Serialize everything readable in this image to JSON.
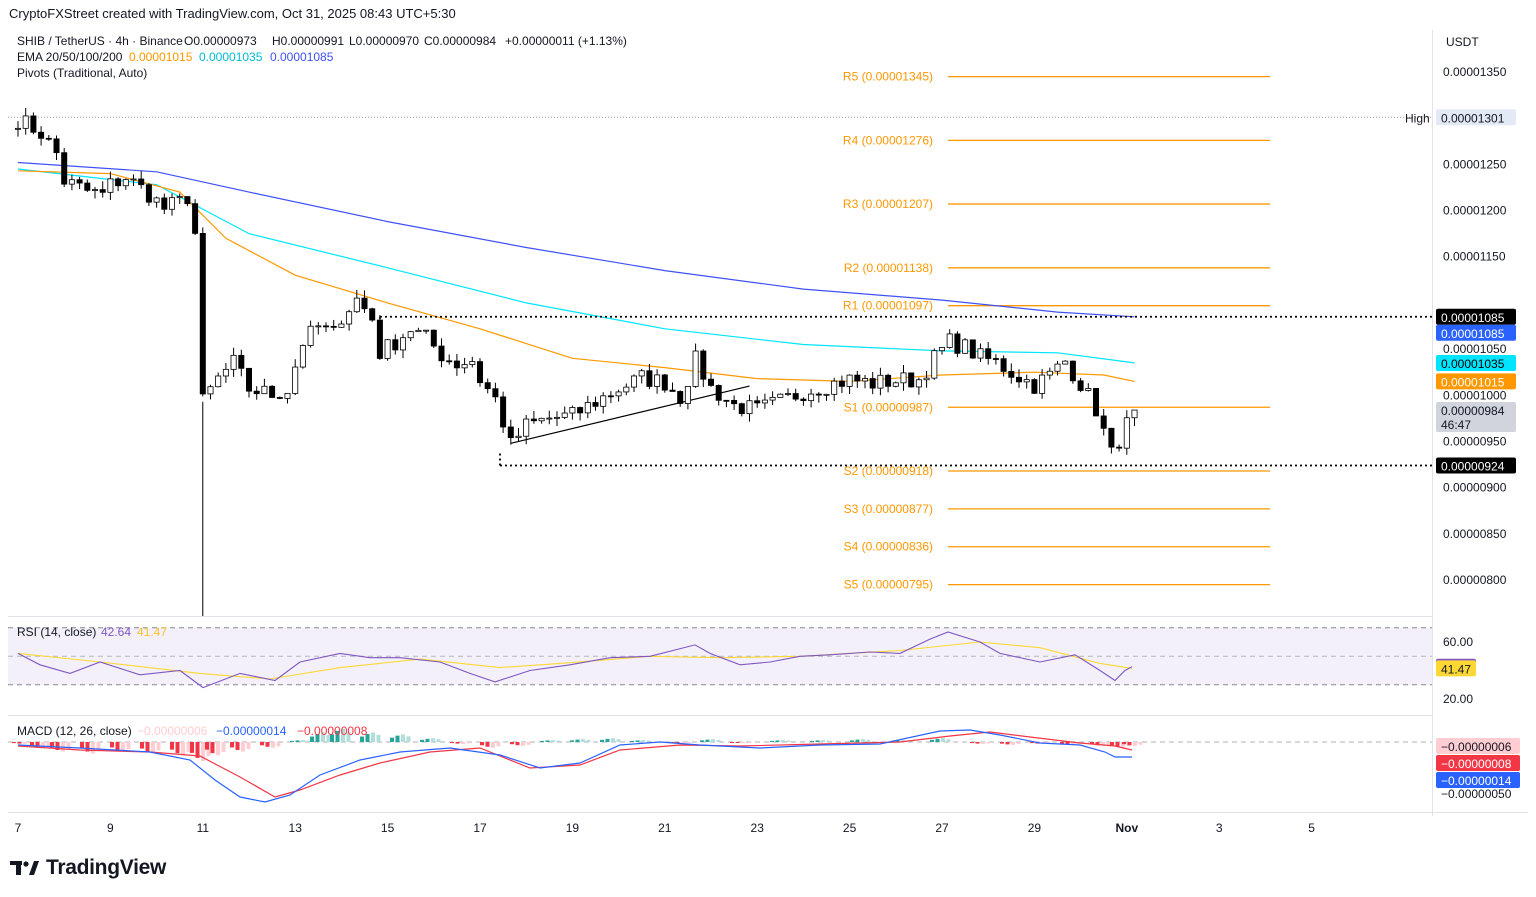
{
  "attribution": "CryptoFXStreet created with TradingView.com, Oct 31, 2025 08:43 UTC+5:30",
  "brand": "TradingView",
  "legend": {
    "symbol": "SHIB / TetherUS · 4h · Binance",
    "ohlc": {
      "o": "O0.00000973",
      "h": "H0.00000991",
      "l": "L0.00000970",
      "c": "C0.00000984",
      "chg": "+0.00000011 (+1.13%)"
    },
    "ema_label": "EMA 20/50/100/200",
    "ema_values": [
      "0.00001015",
      "0.00001035",
      "0.00001085"
    ],
    "pivots_label": "Pivots (Traditional, Auto)"
  },
  "currency": "USDT",
  "colors": {
    "up": "#ffffff",
    "down": "#000000",
    "wick": "#000000",
    "ema50": "#ff9800",
    "ema100": "#00e5ff",
    "ema200": "#3f51f5",
    "ema20": "#ffb26b",
    "pivot": "#ff9800",
    "rsi": "#7e57c2",
    "rsi_ma": "#fdd835",
    "macd": "#2962ff",
    "signal": "#f23645",
    "hist_up_strong": "#26a69a",
    "hist_up_weak": "#b2dfdb",
    "hist_dn_strong": "#f23645",
    "hist_dn_weak": "#ffcdd2"
  },
  "chart_data": [
    {
      "type": "candlestick",
      "title": "SHIB / TetherUS · 4h · Binance",
      "x_ticks": [
        "7",
        "9",
        "11",
        "13",
        "15",
        "17",
        "19",
        "21",
        "23",
        "25",
        "27",
        "29",
        "Nov",
        "3",
        "5"
      ],
      "y_ticks": [
        "0.00001350",
        "0.00001250",
        "0.00001200",
        "0.00001150",
        "0.00001050",
        "0.00001000",
        "0.00000950",
        "0.00000900",
        "0.00000850",
        "0.00000800"
      ],
      "ylim": [
        7.6e-06,
        1.38e-05
      ],
      "price_series": [
        [
          "Oct 7 00:00",
          1.299e-05
        ],
        [
          "Oct 7 12:00",
          1.284e-05
        ],
        [
          "Oct 7 20:00",
          1.262e-05
        ],
        [
          "Oct 8 00:00",
          1.232e-05
        ],
        [
          "Oct 8 12:00",
          1.221e-05
        ],
        [
          "Oct 8 20:00",
          1.217e-05
        ],
        [
          "Oct 9 00:00",
          1.228e-05
        ],
        [
          "Oct 9 08:00",
          1.236e-05
        ],
        [
          "Oct 9 20:00",
          1.218e-05
        ],
        [
          "Oct 10 04:00",
          1.202e-05
        ],
        [
          "Oct 10 12:00",
          1.209e-05
        ],
        [
          "Oct 10 16:00",
          1.215e-05
        ],
        [
          "Oct 10 20:00",
          1.175e-05
        ],
        [
          "Oct 11 00:00",
          9.93e-06
        ],
        [
          "Oct 11 08:00",
          1.018e-05
        ],
        [
          "Oct 11 16:00",
          1.035e-05
        ],
        [
          "Oct 12 00:00",
          1.007e-05
        ],
        [
          "Oct 12 12:00",
          1.001e-05
        ],
        [
          "Oct 12 20:00",
          1.006e-05
        ],
        [
          "Oct 13 04:00",
          1.058e-05
        ],
        [
          "Oct 13 12:00",
          1.074e-05
        ],
        [
          "Oct 13 20:00",
          1.066e-05
        ],
        [
          "Oct 14 00:00",
          1.086e-05
        ],
        [
          "Oct 14 08:00",
          1.104e-05
        ],
        [
          "Oct 14 16:00",
          1.083e-05
        ],
        [
          "Oct 14 20:00",
          1.046e-05
        ],
        [
          "Oct 15 04:00",
          1.058e-05
        ],
        [
          "Oct 15 12:00",
          1.072e-05
        ],
        [
          "Oct 15 20:00",
          1.062e-05
        ],
        [
          "Oct 16 04:00",
          1.044e-05
        ],
        [
          "Oct 16 12:00",
          1.034e-05
        ],
        [
          "Oct 16 20:00",
          1.038e-05
        ],
        [
          "Oct 17 00:00",
          1.017e-05
        ],
        [
          "Oct 17 08:00",
          9.96e-06
        ],
        [
          "Oct 17 16:00",
          9.46e-06
        ],
        [
          "Oct 18 00:00",
          9.67e-06
        ],
        [
          "Oct 18 12:00",
          9.75e-06
        ],
        [
          "Oct 19 00:00",
          9.78e-06
        ],
        [
          "Oct 19 12:00",
          9.93e-06
        ],
        [
          "Oct 20 00:00",
          1.007e-05
        ],
        [
          "Oct 20 12:00",
          1.019e-05
        ],
        [
          "Oct 21 00:00",
          1.014e-05
        ],
        [
          "Oct 21 08:00",
          9.98e-06
        ],
        [
          "Oct 21 16:00",
          1.038e-05
        ],
        [
          "Oct 22 00:00",
          1.008e-05
        ],
        [
          "Oct 22 12:00",
          9.89e-06
        ],
        [
          "Oct 23 00:00",
          9.84e-06
        ],
        [
          "Oct 23 12:00",
          9.93e-06
        ],
        [
          "Oct 24 00:00",
          1.004e-05
        ],
        [
          "Oct 24 12:00",
          1.011e-05
        ],
        [
          "Oct 25 00:00",
          1.017e-05
        ],
        [
          "Oct 25 12:00",
          1.013e-05
        ],
        [
          "Oct 26 00:00",
          1.016e-05
        ],
        [
          "Oct 26 12:00",
          1.017e-05
        ],
        [
          "Oct 26 20:00",
          1.04e-05
        ],
        [
          "Oct 27 04:00",
          1.058e-05
        ],
        [
          "Oct 27 12:00",
          1.052e-05
        ],
        [
          "Oct 27 20:00",
          1.041e-05
        ],
        [
          "Oct 28 04:00",
          1.036e-05
        ],
        [
          "Oct 28 12:00",
          1.025e-05
        ],
        [
          "Oct 29 00:00",
          1.011e-05
        ],
        [
          "Oct 29 08:00",
          1.022e-05
        ],
        [
          "Oct 29 16:00",
          1.037e-05
        ],
        [
          "Oct 30 00:00",
          1.013e-05
        ],
        [
          "Oct 30 08:00",
          9.85e-06
        ],
        [
          "Oct 30 16:00",
          9.36e-06
        ],
        [
          "Oct 31 00:00",
          9.68e-06
        ],
        [
          "Oct 31 04:00",
          9.84e-06
        ]
      ],
      "ema": {
        "ema50": 1.015e-05,
        "ema100": 1.035e-05,
        "ema200": 1.085e-05
      },
      "pivots": [
        {
          "name": "R5",
          "label": "R5 (0.00001345)",
          "value": 1.345e-05
        },
        {
          "name": "R4",
          "label": "R4 (0.00001276)",
          "value": 1.276e-05
        },
        {
          "name": "R3",
          "label": "R3 (0.00001207)",
          "value": 1.207e-05
        },
        {
          "name": "R2",
          "label": "R2 (0.00001138)",
          "value": 1.138e-05
        },
        {
          "name": "R1",
          "label": "R1 (0.00001097)",
          "value": 1.097e-05
        },
        {
          "name": "S1",
          "label": "S1 (0.00000987)",
          "value": 9.87e-06
        },
        {
          "name": "S2",
          "label": "S2 (0.00000918)",
          "value": 9.18e-06
        },
        {
          "name": "S3",
          "label": "S3 (0.00000877)",
          "value": 8.77e-06
        },
        {
          "name": "S4",
          "label": "S4 (0.00000836)",
          "value": 8.36e-06
        },
        {
          "name": "S5",
          "label": "S5 (0.00000795)",
          "value": 7.95e-06
        }
      ],
      "horizontal_levels": [
        {
          "label": "0.00001085",
          "value": 1.085e-05,
          "style": "dotted"
        },
        {
          "label": "0.00000924",
          "value": 9.24e-06,
          "style": "dotted"
        }
      ],
      "high_marker": {
        "label": "High",
        "value_text": "0.00001301",
        "value": 1.301e-05
      },
      "price_tags": [
        {
          "text": "0.00001085",
          "value": 1.085e-05,
          "bg": "#000000",
          "fg": "#ffffff"
        },
        {
          "text": "0.00001085",
          "value": 1.085e-05,
          "bg": "#2962ff",
          "fg": "#ffffff",
          "stack": 1
        },
        {
          "text": "0.00001035",
          "value": 1.035e-05,
          "bg": "#00e5ff",
          "fg": "#000000"
        },
        {
          "text": "0.00001015",
          "value": 1.015e-05,
          "bg": "#ff9800",
          "fg": "#ffffff"
        },
        {
          "text": "0.00000984",
          "value": 9.84e-06,
          "bg": "#d1d4dc",
          "fg": "#131722",
          "countdown": "46:47"
        },
        {
          "text": "0.00000924",
          "value": 9.24e-06,
          "bg": "#000000",
          "fg": "#ffffff"
        }
      ]
    },
    {
      "type": "line",
      "title": "RSI (14, close)",
      "values_text": [
        "42.64",
        "41.47"
      ],
      "y_ticks": [
        "60.00",
        "20.00"
      ],
      "bands": [
        70,
        30
      ],
      "rsi_last": 42.64,
      "rsi_ma_last": 41.47
    },
    {
      "type": "bar",
      "title": "MACD (12, 26, close)",
      "values_text": [
        "−0.00000006",
        "−0.00000014",
        "−0.00000008"
      ],
      "axis_tags": [
        "−0.00000006",
        "−0.00000008",
        "−0.00000014",
        "−0.00000050"
      ],
      "histogram_last": -6e-08,
      "macd_last": -1.4e-07,
      "signal_last": -8e-08
    }
  ]
}
